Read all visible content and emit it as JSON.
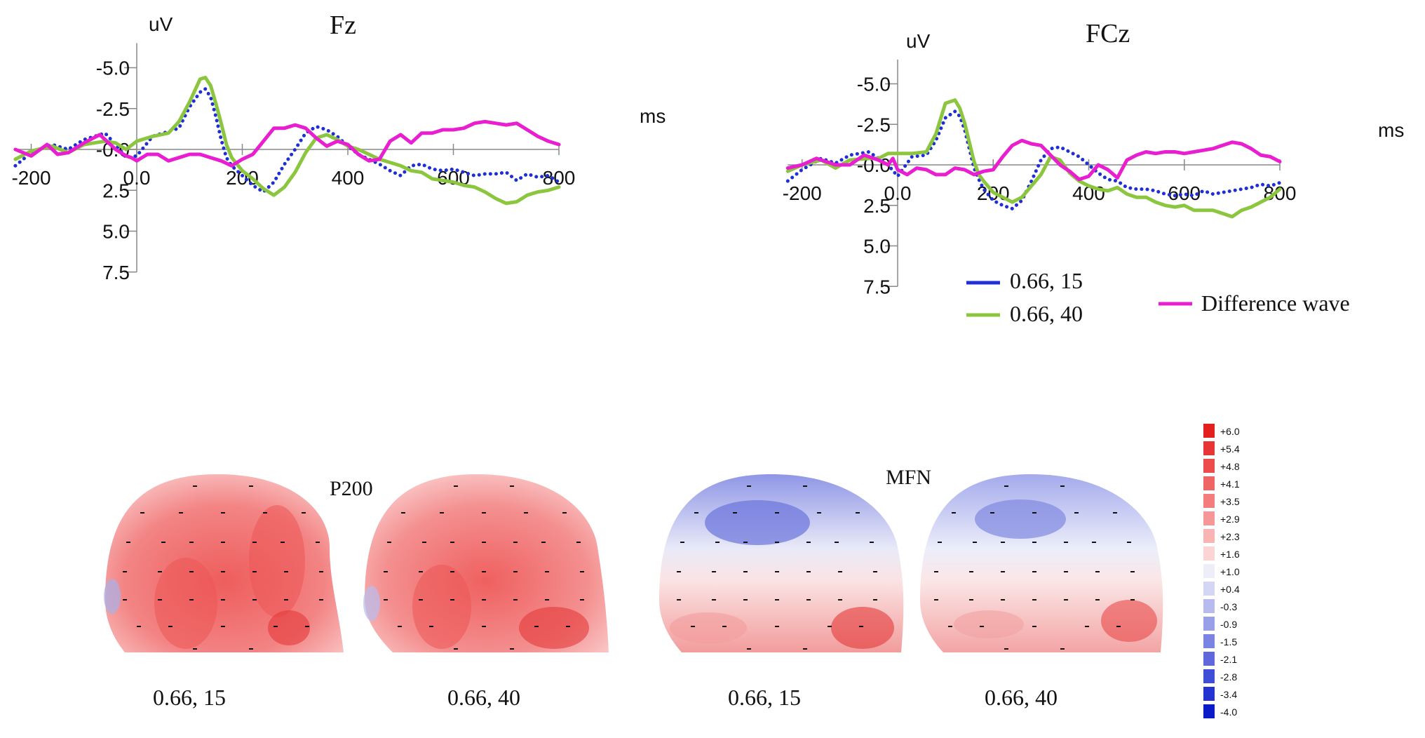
{
  "chart_data": [
    {
      "type": "line",
      "title": "Fz",
      "ylabel": "uV",
      "xlabel": "ms",
      "xlim": [
        -230,
        800
      ],
      "ylim": [
        -6.5,
        7.5
      ],
      "y_inverted": true,
      "xticks": [
        "-200",
        "0.0",
        "200",
        "400",
        "600",
        "800"
      ],
      "yticks": [
        "-5.0",
        "-2.5",
        "-0.0",
        "2.5",
        "5.0",
        "7.5"
      ],
      "series": [
        {
          "name": "0.66, 15",
          "color": "#1f2fd6",
          "style": "dotted",
          "x": [
            -230,
            -200,
            -160,
            -130,
            -100,
            -60,
            -40,
            -20,
            0,
            30,
            60,
            80,
            100,
            120,
            130,
            140,
            150,
            160,
            170,
            180,
            200,
            220,
            240,
            260,
            280,
            300,
            320,
            340,
            360,
            380,
            400,
            420,
            440,
            460,
            480,
            500,
            520,
            540,
            560,
            580,
            600,
            620,
            640,
            660,
            680,
            700,
            720,
            740,
            760,
            780,
            800
          ],
          "y": [
            1.0,
            0.2,
            -0.3,
            0.0,
            -0.6,
            -1.0,
            -0.3,
            0.5,
            0.4,
            -0.8,
            -1.1,
            -1.3,
            -2.6,
            -3.5,
            -3.7,
            -3.2,
            -2.0,
            -0.6,
            0.5,
            1.0,
            1.6,
            2.2,
            2.6,
            2.0,
            0.9,
            0.0,
            -1.0,
            -1.4,
            -1.2,
            -0.8,
            -0.2,
            0.3,
            0.6,
            0.9,
            1.3,
            1.6,
            1.0,
            0.9,
            1.2,
            1.3,
            1.2,
            1.4,
            1.6,
            1.5,
            1.5,
            1.4,
            1.9,
            1.5,
            1.7,
            1.6,
            2.0
          ]
        },
        {
          "name": "0.66, 40",
          "color": "#8cc63f",
          "style": "solid",
          "x": [
            -230,
            -200,
            -160,
            -130,
            -100,
            -60,
            -40,
            -20,
            0,
            30,
            60,
            80,
            100,
            120,
            130,
            140,
            150,
            160,
            170,
            180,
            200,
            220,
            240,
            260,
            280,
            300,
            320,
            340,
            360,
            380,
            400,
            420,
            440,
            460,
            480,
            500,
            520,
            540,
            560,
            580,
            600,
            620,
            640,
            660,
            680,
            700,
            720,
            740,
            760,
            780,
            800
          ],
          "y": [
            0.6,
            0.1,
            -0.2,
            0.2,
            -0.3,
            -0.5,
            -0.4,
            0.0,
            -0.5,
            -0.8,
            -1.0,
            -1.7,
            -2.9,
            -4.3,
            -4.4,
            -3.9,
            -2.8,
            -1.6,
            -0.3,
            0.5,
            1.3,
            1.8,
            2.4,
            2.8,
            2.3,
            1.4,
            0.2,
            -0.7,
            -0.9,
            -0.6,
            -0.2,
            0.0,
            0.3,
            0.6,
            0.8,
            1.0,
            1.3,
            1.4,
            1.8,
            1.9,
            2.0,
            2.2,
            2.3,
            2.6,
            3.0,
            3.3,
            3.2,
            2.8,
            2.6,
            2.5,
            2.3
          ]
        },
        {
          "name": "Difference wave",
          "color": "#e81ed0",
          "style": "solid",
          "x": [
            -230,
            -200,
            -170,
            -150,
            -130,
            -100,
            -70,
            -40,
            -20,
            -10,
            0,
            20,
            40,
            60,
            80,
            100,
            120,
            140,
            160,
            180,
            200,
            220,
            240,
            260,
            280,
            300,
            320,
            340,
            360,
            380,
            400,
            420,
            440,
            460,
            480,
            500,
            520,
            540,
            560,
            580,
            600,
            620,
            640,
            660,
            680,
            700,
            720,
            740,
            760,
            780,
            800
          ],
          "y": [
            0.0,
            0.4,
            -0.3,
            0.3,
            0.2,
            -0.4,
            -0.9,
            0.0,
            0.4,
            0.5,
            0.7,
            0.3,
            0.3,
            0.7,
            0.5,
            0.3,
            0.3,
            0.5,
            0.7,
            1.0,
            0.6,
            0.3,
            -0.5,
            -1.3,
            -1.3,
            -1.5,
            -1.3,
            -0.7,
            -0.2,
            -0.5,
            -0.3,
            0.3,
            0.7,
            0.6,
            -0.5,
            -0.9,
            -0.4,
            -1.0,
            -1.0,
            -1.2,
            -1.2,
            -1.3,
            -1.6,
            -1.7,
            -1.6,
            -1.5,
            -1.6,
            -1.2,
            -0.8,
            -0.5,
            -0.3
          ]
        }
      ]
    },
    {
      "type": "line",
      "title": "FCz",
      "ylabel": "uV",
      "xlabel": "ms",
      "xlim": [
        -230,
        800
      ],
      "ylim": [
        -6.5,
        7.5
      ],
      "y_inverted": true,
      "xticks": [
        "-200",
        "0.0",
        "200",
        "400",
        "600",
        "800"
      ],
      "yticks": [
        "-5.0",
        "-2.5",
        "-0.0",
        "2.5",
        "5.0",
        "7.5"
      ],
      "series": [
        {
          "name": "0.66, 15",
          "color": "#1f2fd6",
          "style": "dotted",
          "x": [
            -230,
            -200,
            -160,
            -130,
            -100,
            -60,
            -40,
            -20,
            0,
            30,
            60,
            80,
            100,
            120,
            130,
            140,
            150,
            160,
            170,
            180,
            200,
            220,
            240,
            260,
            280,
            300,
            320,
            340,
            360,
            380,
            400,
            420,
            440,
            460,
            480,
            500,
            520,
            540,
            560,
            580,
            600,
            620,
            640,
            660,
            680,
            700,
            720,
            740,
            760,
            780,
            800
          ],
          "y": [
            1.0,
            0.3,
            -0.4,
            -0.1,
            -0.6,
            -0.8,
            -0.4,
            0.0,
            0.7,
            -0.5,
            -0.6,
            -1.5,
            -2.9,
            -3.3,
            -3.0,
            -2.2,
            -1.0,
            0.2,
            0.9,
            1.5,
            2.2,
            2.5,
            2.7,
            2.2,
            1.0,
            -0.3,
            -1.0,
            -1.1,
            -0.8,
            -0.5,
            0.0,
            0.5,
            0.9,
            1.0,
            1.4,
            1.5,
            1.5,
            1.6,
            1.8,
            1.9,
            1.8,
            1.9,
            1.6,
            1.8,
            1.7,
            1.6,
            1.5,
            1.4,
            1.2,
            1.3,
            1.1
          ]
        },
        {
          "name": "0.66, 40",
          "color": "#8cc63f",
          "style": "solid",
          "x": [
            -230,
            -200,
            -160,
            -130,
            -100,
            -60,
            -40,
            -20,
            0,
            30,
            60,
            80,
            100,
            120,
            130,
            140,
            150,
            160,
            170,
            180,
            200,
            220,
            240,
            260,
            280,
            300,
            320,
            340,
            360,
            380,
            400,
            420,
            440,
            460,
            480,
            500,
            520,
            540,
            560,
            580,
            600,
            620,
            640,
            660,
            680,
            700,
            720,
            740,
            760,
            780,
            800
          ],
          "y": [
            0.4,
            0.0,
            -0.3,
            0.2,
            -0.3,
            -0.4,
            -0.4,
            -0.7,
            -0.7,
            -0.7,
            -0.8,
            -1.9,
            -3.8,
            -4.0,
            -3.5,
            -2.6,
            -1.4,
            -0.2,
            0.6,
            1.0,
            1.7,
            2.0,
            2.3,
            2.0,
            1.3,
            0.6,
            -0.5,
            -0.3,
            0.5,
            1.0,
            1.3,
            1.5,
            1.6,
            1.4,
            1.8,
            2.0,
            2.0,
            2.3,
            2.5,
            2.6,
            2.5,
            2.8,
            2.8,
            2.8,
            3.0,
            3.2,
            2.8,
            2.6,
            2.3,
            2.0,
            1.5
          ]
        },
        {
          "name": "Difference wave",
          "color": "#e81ed0",
          "style": "solid",
          "x": [
            -230,
            -200,
            -170,
            -150,
            -130,
            -100,
            -70,
            -40,
            -20,
            -10,
            0,
            20,
            40,
            60,
            80,
            100,
            120,
            140,
            160,
            180,
            200,
            220,
            240,
            260,
            280,
            300,
            320,
            340,
            360,
            380,
            400,
            420,
            440,
            460,
            480,
            500,
            520,
            540,
            560,
            580,
            600,
            620,
            640,
            660,
            680,
            700,
            720,
            740,
            760,
            780,
            800
          ],
          "y": [
            0.2,
            0.0,
            -0.4,
            -0.2,
            0.0,
            0.0,
            -0.6,
            -0.3,
            0.0,
            -0.4,
            0.3,
            0.6,
            0.2,
            0.3,
            0.6,
            0.6,
            0.2,
            0.3,
            0.6,
            0.4,
            0.3,
            -0.5,
            -1.2,
            -1.5,
            -1.3,
            -1.2,
            -0.6,
            0.0,
            0.4,
            0.9,
            0.7,
            0.0,
            0.3,
            0.8,
            -0.3,
            -0.6,
            -0.8,
            -0.7,
            -0.8,
            -0.8,
            -0.7,
            -0.8,
            -0.9,
            -1.0,
            -1.2,
            -1.4,
            -1.3,
            -1.0,
            -0.6,
            -0.5,
            -0.2
          ]
        }
      ]
    }
  ],
  "legend": {
    "items": [
      {
        "label": "0.66, 15",
        "color": "#1f2fd6"
      },
      {
        "label": "0.66, 40",
        "color": "#8cc63f"
      },
      {
        "label": "Difference wave",
        "color": "#e81ed0"
      }
    ]
  },
  "topomaps": {
    "groups": [
      {
        "label": "P200"
      },
      {
        "label": "MFN"
      }
    ],
    "maps": [
      {
        "condition": "0.66, 15",
        "component": "P200"
      },
      {
        "condition": "0.66, 40",
        "component": "P200"
      },
      {
        "condition": "0.66, 15",
        "component": "MFN"
      },
      {
        "condition": "0.66, 40",
        "component": "MFN"
      }
    ]
  },
  "colorbar": {
    "labels": [
      "+6.0",
      "+5.4",
      "+4.8",
      "+4.1",
      "+3.5",
      "+2.9",
      "+2.3",
      "+1.6",
      "+1.0",
      "+0.4",
      "-0.3",
      "-0.9",
      "-1.5",
      "-2.1",
      "-2.8",
      "-3.4",
      "-4.0"
    ],
    "colors": [
      "#e41f1f",
      "#e83434",
      "#ec4c4c",
      "#f06464",
      "#f37d7d",
      "#f69696",
      "#f9b4b4",
      "#fcd4d4",
      "#eeeef9",
      "#d4d6f3",
      "#b7bbee",
      "#9aa0e8",
      "#7c84e2",
      "#5e68dc",
      "#404dd6",
      "#2533d1",
      "#0c1bc8"
    ]
  }
}
